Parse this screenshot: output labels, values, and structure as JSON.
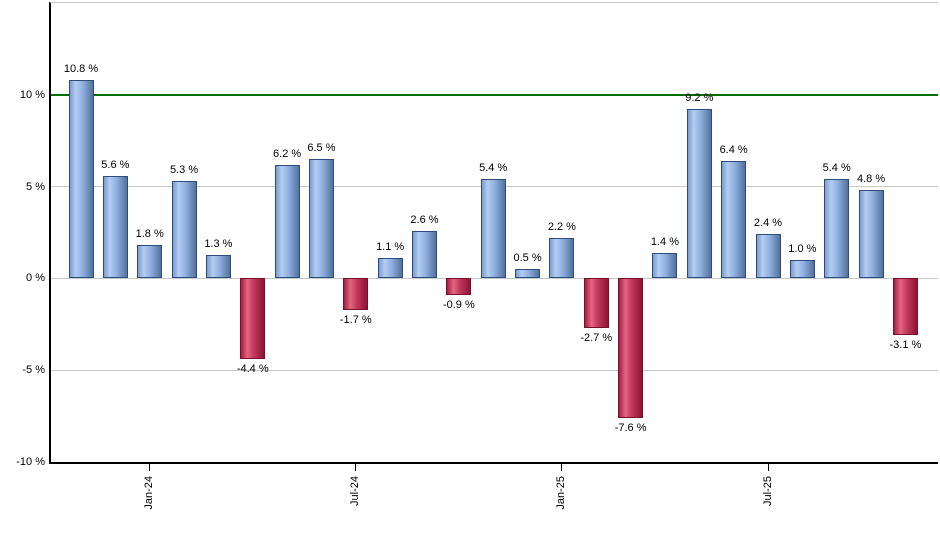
{
  "chart_data": {
    "type": "bar",
    "title": "",
    "xlabel": "",
    "ylabel": "",
    "values": [
      10.8,
      5.6,
      1.8,
      5.3,
      1.3,
      -4.4,
      6.2,
      6.5,
      -1.7,
      1.1,
      2.6,
      -0.9,
      5.4,
      0.5,
      2.2,
      -2.7,
      -7.6,
      1.4,
      9.2,
      6.4,
      2.4,
      1.0,
      5.4,
      4.8,
      -3.1
    ],
    "value_label_suffix": " %",
    "x_ticks": [
      {
        "index": 2,
        "label": "Jan-24"
      },
      {
        "index": 8,
        "label": "Jul-24"
      },
      {
        "index": 14,
        "label": "Jan-25"
      },
      {
        "index": 20,
        "label": "Jul-25"
      }
    ],
    "y_ticks": [
      {
        "value": 10,
        "label": "10 %"
      },
      {
        "value": 5,
        "label": "5 %"
      },
      {
        "value": 0,
        "label": "0 %"
      },
      {
        "value": -5,
        "label": "-5 %"
      },
      {
        "value": -10,
        "label": "-10 %"
      }
    ],
    "ylim": [
      -10,
      15
    ],
    "gridline_values": [
      5,
      0,
      -5
    ],
    "reference_line": {
      "value": 10,
      "color": "#007000"
    },
    "legend": null,
    "colors": {
      "positive_bar_light": "#b3cdf2",
      "positive_bar_dark": "#54719b",
      "positive_bar_border": "#2d4d7e",
      "negative_bar_light": "#e56580",
      "negative_bar_dark": "#8c1434",
      "negative_bar_border": "#791029",
      "grid": "#c9c9c9",
      "axis": "#000000",
      "reference_green": "#007000"
    }
  }
}
